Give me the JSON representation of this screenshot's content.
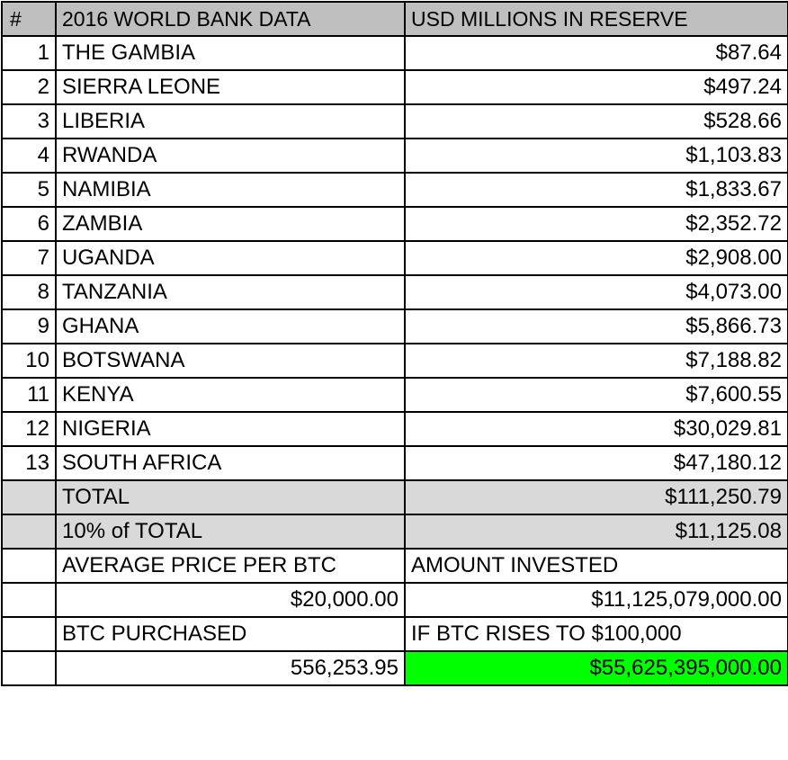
{
  "header": {
    "num": "#",
    "name": "2016 WORLD BANK DATA",
    "value": "USD MILLIONS IN RESERVE"
  },
  "rows": [
    {
      "num": "1",
      "country": "THE GAMBIA",
      "reserve": "$87.64"
    },
    {
      "num": "2",
      "country": "SIERRA LEONE",
      "reserve": "$497.24"
    },
    {
      "num": "3",
      "country": "LIBERIA",
      "reserve": "$528.66"
    },
    {
      "num": "4",
      "country": "RWANDA",
      "reserve": "$1,103.83"
    },
    {
      "num": "5",
      "country": "NAMIBIA",
      "reserve": "$1,833.67"
    },
    {
      "num": "6",
      "country": "ZAMBIA",
      "reserve": "$2,352.72"
    },
    {
      "num": "7",
      "country": "UGANDA",
      "reserve": "$2,908.00"
    },
    {
      "num": "8",
      "country": "TANZANIA",
      "reserve": "$4,073.00"
    },
    {
      "num": "9",
      "country": "GHANA",
      "reserve": "$5,866.73"
    },
    {
      "num": "10",
      "country": "BOTSWANA",
      "reserve": "$7,188.82"
    },
    {
      "num": "11",
      "country": "KENYA",
      "reserve": "$7,600.55"
    },
    {
      "num": "12",
      "country": "NIGERIA",
      "reserve": "$30,029.81"
    },
    {
      "num": "13",
      "country": "SOUTH AFRICA",
      "reserve": "$47,180.12"
    }
  ],
  "total": {
    "label": "TOTAL",
    "value": "$111,250.79"
  },
  "ten_percent": {
    "label": "10% of TOTAL",
    "value": "$11,125.08"
  },
  "avg_price": {
    "label": "AVERAGE PRICE PER BTC",
    "value": "$20,000.00"
  },
  "amount_invested": {
    "label": "AMOUNT INVESTED",
    "value": "$11,125,079,000.00"
  },
  "btc_purchased": {
    "label": "BTC PURCHASED",
    "value": "556,253.95"
  },
  "if_btc_rises": {
    "label": "IF BTC RISES TO $100,000",
    "value": "$55,625,395,000.00"
  },
  "colors": {
    "header_bg": "#bfbfbf",
    "total_bg": "#d9d9d9",
    "highlight": "#00ff00"
  }
}
